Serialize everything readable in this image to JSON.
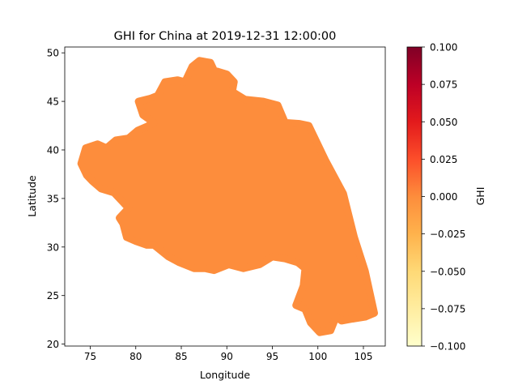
{
  "chart_data": {
    "type": "scatter",
    "title": "GHI for China at 2019-12-31 12:00:00",
    "xlabel": "Longitude",
    "ylabel": "Latitude",
    "xlim": [
      72.2,
      107.4
    ],
    "ylim": [
      19.8,
      50.6
    ],
    "xticks": [
      75,
      80,
      85,
      90,
      95,
      100,
      105
    ],
    "yticks": [
      20,
      25,
      30,
      35,
      40,
      45,
      50
    ],
    "grid": false,
    "fill_color": "#fd8d3c",
    "value": 0.0,
    "region_outline": [
      [
        74.5,
        40.2
      ],
      [
        75.8,
        40.6
      ],
      [
        76.8,
        40.2
      ],
      [
        77.8,
        41.0
      ],
      [
        79.2,
        41.2
      ],
      [
        80.2,
        42.0
      ],
      [
        81.2,
        42.4
      ],
      [
        82.0,
        42.8
      ],
      [
        80.8,
        43.6
      ],
      [
        80.3,
        45.0
      ],
      [
        81.6,
        45.3
      ],
      [
        82.4,
        45.6
      ],
      [
        83.2,
        47.0
      ],
      [
        84.6,
        47.2
      ],
      [
        85.4,
        47.0
      ],
      [
        86.2,
        48.6
      ],
      [
        87.0,
        49.2
      ],
      [
        88.2,
        49.0
      ],
      [
        88.6,
        48.2
      ],
      [
        90.0,
        47.8
      ],
      [
        90.8,
        47.0
      ],
      [
        90.6,
        46.0
      ],
      [
        92.0,
        45.2
      ],
      [
        94.0,
        45.0
      ],
      [
        95.6,
        44.6
      ],
      [
        96.4,
        42.8
      ],
      [
        98.0,
        42.7
      ],
      [
        99.0,
        42.5
      ],
      [
        100.8,
        39.0
      ],
      [
        102.8,
        35.5
      ],
      [
        104.0,
        31.0
      ],
      [
        105.2,
        27.5
      ],
      [
        106.2,
        23.2
      ],
      [
        105.2,
        22.8
      ],
      [
        103.8,
        22.6
      ],
      [
        102.6,
        22.4
      ],
      [
        102.0,
        22.8
      ],
      [
        101.4,
        21.4
      ],
      [
        100.2,
        21.2
      ],
      [
        99.2,
        22.2
      ],
      [
        98.6,
        23.6
      ],
      [
        97.6,
        24.0
      ],
      [
        98.4,
        26.0
      ],
      [
        98.6,
        27.8
      ],
      [
        97.8,
        28.4
      ],
      [
        96.4,
        28.8
      ],
      [
        95.0,
        29.0
      ],
      [
        93.6,
        28.2
      ],
      [
        91.8,
        27.8
      ],
      [
        90.2,
        28.2
      ],
      [
        88.6,
        27.6
      ],
      [
        87.6,
        27.8
      ],
      [
        86.4,
        27.8
      ],
      [
        84.8,
        28.4
      ],
      [
        83.6,
        29.0
      ],
      [
        82.0,
        30.2
      ],
      [
        81.2,
        30.2
      ],
      [
        80.0,
        30.6
      ],
      [
        79.0,
        31.0
      ],
      [
        78.6,
        32.4
      ],
      [
        78.2,
        33.0
      ],
      [
        79.2,
        34.0
      ],
      [
        78.4,
        34.8
      ],
      [
        77.6,
        35.6
      ],
      [
        76.2,
        36.0
      ],
      [
        75.2,
        36.8
      ],
      [
        74.6,
        37.4
      ],
      [
        74.0,
        38.6
      ]
    ],
    "colorbar": {
      "label": "GHI",
      "range": [
        -0.1,
        0.1
      ],
      "ticks": [
        "0.100",
        "0.075",
        "0.050",
        "0.025",
        "0.000",
        "−0.025",
        "−0.050",
        "−0.075",
        "−0.100"
      ],
      "colormap": [
        "#ffffcc",
        "#ffeda0",
        "#fed976",
        "#feb24c",
        "#fd8d3c",
        "#fc4e2a",
        "#e31a1c",
        "#bd0026",
        "#800026"
      ]
    }
  }
}
